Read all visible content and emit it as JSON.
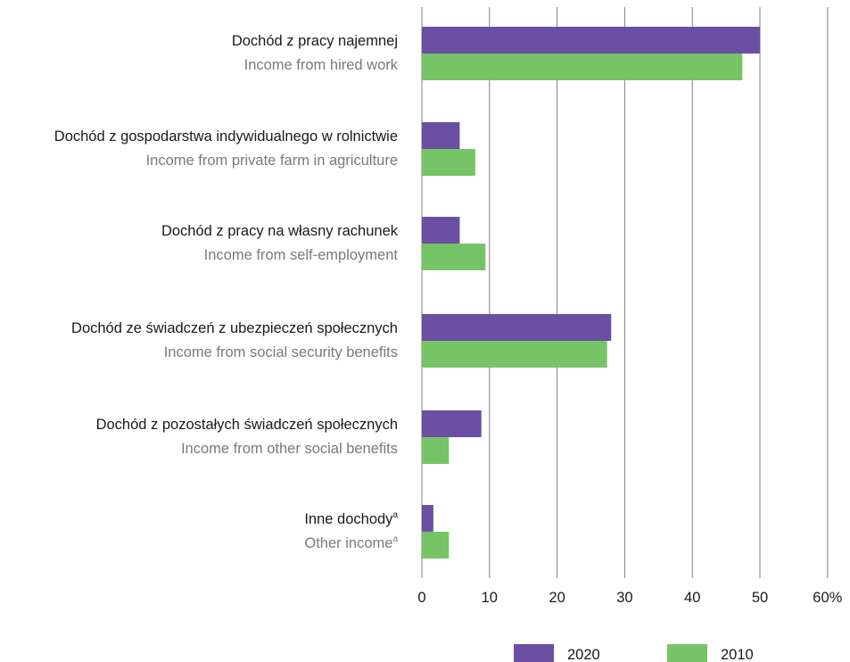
{
  "chart_data": {
    "type": "bar",
    "orientation": "horizontal",
    "categories": [
      {
        "pl": "Dochód z pracy najemnej",
        "en": "Income from hired work",
        "sup": ""
      },
      {
        "pl": "Dochód z gospodarstwa indywidualnego w rolnictwie",
        "en": "Income from private farm in agriculture",
        "sup": ""
      },
      {
        "pl": "Dochód z pracy na własny rachunek",
        "en": "Income from self-employment",
        "sup": ""
      },
      {
        "pl": "Dochód ze świadczeń z ubezpieczeń społecznych",
        "en": "Income from social security benefits",
        "sup": ""
      },
      {
        "pl": "Dochód z pozostałych świadczeń społecznych",
        "en": "Income from other social benefits",
        "sup": ""
      },
      {
        "pl": "Inne dochody",
        "en": "Other income",
        "sup": "a"
      }
    ],
    "series": [
      {
        "name": "2020",
        "color": "#6a4fa3",
        "values": [
          50.0,
          5.6,
          5.6,
          28.0,
          8.8,
          1.7
        ]
      },
      {
        "name": "2010",
        "color": "#77c466",
        "values": [
          47.4,
          7.9,
          9.4,
          27.4,
          4.0,
          4.0
        ]
      }
    ],
    "xlim": [
      0,
      60
    ],
    "ticks": [
      "0",
      "10",
      "20",
      "30",
      "40",
      "50",
      "60%"
    ],
    "grid": true,
    "legend_position": "bottom-right",
    "xlabel": "",
    "ylabel": "",
    "title": ""
  }
}
